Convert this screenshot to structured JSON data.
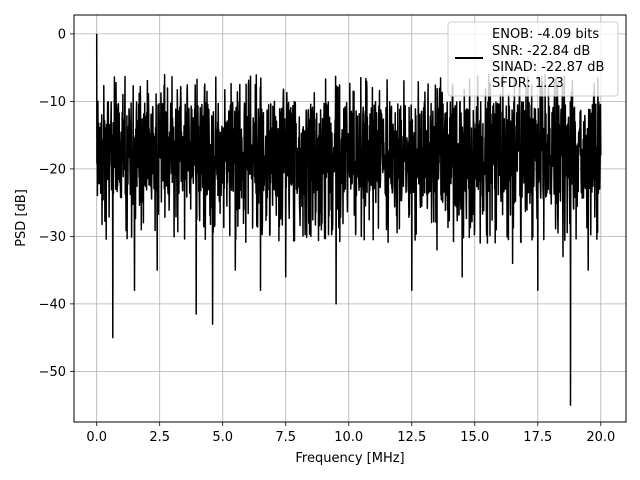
{
  "chart_data": {
    "type": "line",
    "xlabel": "Frequency [MHz]",
    "ylabel": "PSD [dB]",
    "xlim": [
      -0.9,
      21.0
    ],
    "ylim": [
      -57.5,
      2.8
    ],
    "xticks": [
      0.0,
      2.5,
      5.0,
      7.5,
      10.0,
      12.5,
      15.0,
      17.5,
      20.0
    ],
    "xtick_labels": [
      "0.0",
      "2.5",
      "5.0",
      "7.5",
      "10.0",
      "12.5",
      "15.0",
      "17.5",
      "20.0"
    ],
    "yticks": [
      0,
      -10,
      -20,
      -30,
      -40,
      -50
    ],
    "ytick_labels": [
      "0",
      "−10",
      "−20",
      "−30",
      "−40",
      "−50"
    ],
    "grid": true,
    "legend_placement": "upper right",
    "line_color": "#000000",
    "series": [
      {
        "name": "ENOB: -4.09 bits\nSNR: -22.84 dB\nSINAD: -22.87 dB\nSFDR: 1.23",
        "x": [
          0.0,
          0.02,
          0.05,
          0.1,
          0.2,
          0.4,
          0.64,
          1.0,
          1.5,
          2.0,
          2.4,
          2.6,
          3.0,
          3.5,
          3.95,
          4.3,
          4.6,
          5.0,
          5.5,
          6.0,
          6.5,
          7.0,
          7.5,
          7.9,
          8.5,
          9.0,
          9.5,
          10.0,
          10.5,
          11.0,
          11.5,
          12.0,
          12.5,
          12.8,
          13.5,
          14.0,
          14.5,
          14.9,
          15.5,
          16.0,
          16.5,
          17.0,
          17.5,
          18.0,
          18.5,
          18.8,
          19.0,
          19.5,
          20.0
        ],
        "y": [
          0.0,
          -16.0,
          -10.0,
          -22.0,
          -12.0,
          -20.0,
          -45.0,
          -18.0,
          -38.0,
          -16.0,
          -35.0,
          -12.0,
          -22.0,
          -17.0,
          -41.5,
          -18.0,
          -43.0,
          -20.0,
          -35.0,
          -15.0,
          -38.0,
          -20.0,
          -36.0,
          -16.0,
          -30.0,
          -18.0,
          -40.0,
          -19.0,
          -30.0,
          -17.0,
          -29.0,
          -20.0,
          -38.0,
          -17.0,
          -32.0,
          -18.0,
          -36.0,
          -20.0,
          -31.0,
          -18.0,
          -34.0,
          -20.0,
          -38.0,
          -18.0,
          -33.0,
          -55.0,
          -20.0,
          -35.0,
          -18.0
        ]
      }
    ],
    "legend_lines": [
      "ENOB: -4.09 bits",
      "SNR: -22.84 dB",
      "SINAD: -22.87 dB",
      "SFDR: 1.23"
    ]
  }
}
